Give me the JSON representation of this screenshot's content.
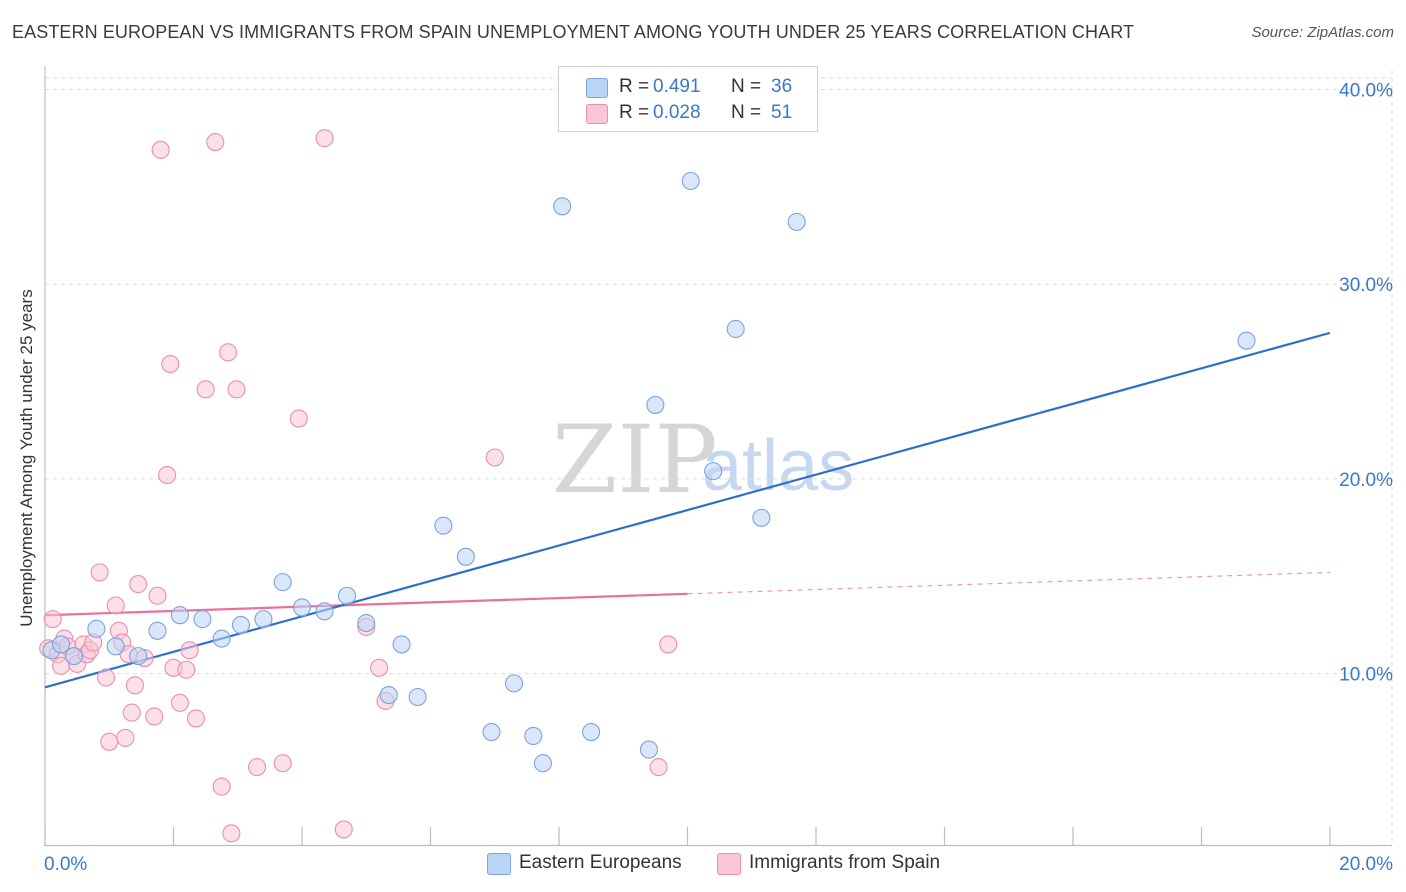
{
  "title": "EASTERN EUROPEAN VS IMMIGRANTS FROM SPAIN UNEMPLOYMENT AMONG YOUTH UNDER 25 YEARS CORRELATION CHART",
  "source": "Source: ZipAtlas.com",
  "watermark": {
    "zip": "ZIP",
    "atlas": "atlas"
  },
  "legend": {
    "rows": [
      {
        "r_label": "R =",
        "r_value": "0.491",
        "n_label": "N =",
        "n_value": "36"
      },
      {
        "r_label": "R =",
        "r_value": "0.028",
        "n_label": "N =",
        "n_value": "51"
      }
    ]
  },
  "bottom_legend": [
    "Eastern Europeans",
    "Immigrants from Spain"
  ],
  "colors": {
    "blue_fill": "#bcd4f5",
    "blue_stroke": "#7aa4dc",
    "blue_line": "#2f6fcc",
    "pink_fill": "#f8c6d4",
    "pink_stroke": "#eb8fab",
    "pink_line": "#e8709a",
    "tick_label": "#3a78c9"
  },
  "chart_data": {
    "type": "scatter",
    "title": "EASTERN EUROPEAN VS IMMIGRANTS FROM SPAIN UNEMPLOYMENT AMONG YOUTH UNDER 25 YEARS CORRELATION CHART",
    "xlabel": "",
    "ylabel": "Unemployment Among Youth under 25 years",
    "xlim": [
      0,
      20
    ],
    "ylim": [
      1.2,
      41
    ],
    "x_tick_labels": [
      "0.0%",
      "20.0%"
    ],
    "y_ticks": [
      10,
      20,
      30,
      40
    ],
    "y_tick_labels": [
      "10.0%",
      "20.0%",
      "30.0%",
      "40.0%"
    ],
    "grid": true,
    "legend_position": "top-center",
    "series": [
      {
        "name": "Eastern Europeans",
        "r": 0.491,
        "n": 36,
        "trend": {
          "x": [
            0,
            20
          ],
          "y": [
            9.3,
            27.5
          ]
        },
        "points": [
          [
            0.1,
            11.2
          ],
          [
            0.25,
            11.5
          ],
          [
            0.45,
            10.9
          ],
          [
            0.8,
            12.3
          ],
          [
            1.1,
            11.4
          ],
          [
            1.45,
            10.9
          ],
          [
            1.75,
            12.2
          ],
          [
            2.1,
            13.0
          ],
          [
            2.45,
            12.8
          ],
          [
            2.75,
            11.8
          ],
          [
            3.05,
            12.5
          ],
          [
            3.4,
            12.8
          ],
          [
            3.7,
            14.7
          ],
          [
            4.0,
            13.4
          ],
          [
            4.35,
            13.2
          ],
          [
            4.7,
            14.0
          ],
          [
            5.0,
            12.6
          ],
          [
            5.35,
            8.9
          ],
          [
            5.55,
            11.5
          ],
          [
            5.8,
            8.8
          ],
          [
            6.2,
            17.6
          ],
          [
            6.55,
            16.0
          ],
          [
            6.95,
            7.0
          ],
          [
            7.3,
            9.5
          ],
          [
            7.6,
            6.8
          ],
          [
            7.75,
            5.4
          ],
          [
            8.05,
            34.0
          ],
          [
            8.5,
            7.0
          ],
          [
            9.4,
            6.1
          ],
          [
            9.5,
            23.8
          ],
          [
            10.05,
            35.3
          ],
          [
            10.4,
            20.4
          ],
          [
            10.75,
            27.7
          ],
          [
            11.15,
            18.0
          ],
          [
            11.7,
            33.2
          ],
          [
            18.7,
            27.1
          ]
        ]
      },
      {
        "name": "Immigrants from Spain",
        "r": 0.028,
        "n": 51,
        "trend": {
          "x": [
            0,
            10
          ],
          "y": [
            13.0,
            14.1
          ]
        },
        "trend_dashed": {
          "x": [
            10,
            20
          ],
          "y": [
            14.1,
            15.2
          ]
        },
        "points": [
          [
            0.05,
            11.3
          ],
          [
            0.12,
            12.8
          ],
          [
            0.2,
            11.0
          ],
          [
            0.25,
            10.4
          ],
          [
            0.3,
            11.8
          ],
          [
            0.35,
            11.4
          ],
          [
            0.45,
            10.9
          ],
          [
            0.5,
            10.5
          ],
          [
            0.6,
            11.5
          ],
          [
            0.65,
            11.0
          ],
          [
            0.7,
            11.2
          ],
          [
            0.75,
            11.6
          ],
          [
            0.85,
            15.2
          ],
          [
            0.95,
            9.8
          ],
          [
            1.0,
            6.5
          ],
          [
            1.1,
            13.5
          ],
          [
            1.15,
            12.2
          ],
          [
            1.2,
            11.6
          ],
          [
            1.25,
            6.7
          ],
          [
            1.3,
            11.0
          ],
          [
            1.35,
            8.0
          ],
          [
            1.4,
            9.4
          ],
          [
            1.45,
            14.6
          ],
          [
            1.55,
            10.8
          ],
          [
            1.7,
            7.8
          ],
          [
            1.75,
            14.0
          ],
          [
            1.8,
            36.9
          ],
          [
            1.9,
            20.2
          ],
          [
            1.95,
            25.9
          ],
          [
            2.0,
            10.3
          ],
          [
            2.1,
            8.5
          ],
          [
            2.2,
            10.2
          ],
          [
            2.25,
            11.2
          ],
          [
            2.35,
            7.7
          ],
          [
            2.5,
            24.6
          ],
          [
            2.65,
            37.3
          ],
          [
            2.75,
            4.2
          ],
          [
            2.85,
            26.5
          ],
          [
            2.9,
            1.8
          ],
          [
            2.98,
            24.6
          ],
          [
            3.3,
            5.2
          ],
          [
            3.7,
            5.4
          ],
          [
            3.95,
            23.1
          ],
          [
            4.35,
            37.5
          ],
          [
            4.65,
            2.0
          ],
          [
            5.0,
            12.4
          ],
          [
            5.2,
            10.3
          ],
          [
            5.3,
            8.6
          ],
          [
            7.0,
            21.1
          ],
          [
            9.55,
            5.2
          ],
          [
            9.7,
            11.5
          ]
        ]
      }
    ]
  }
}
